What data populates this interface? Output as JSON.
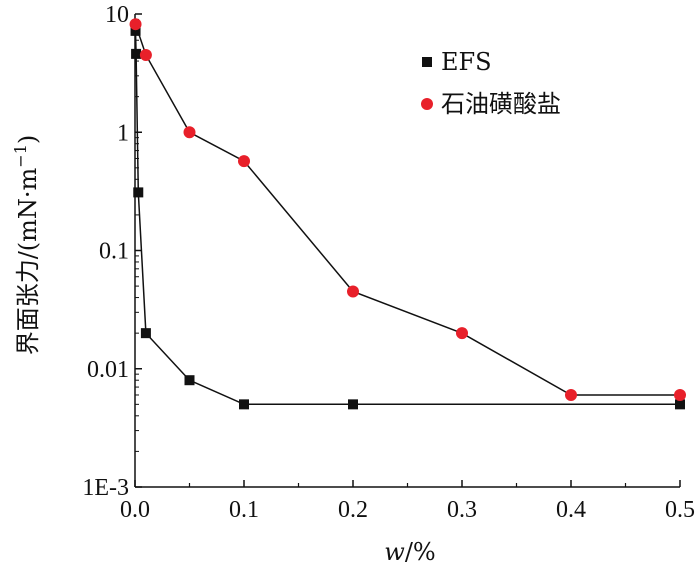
{
  "chart_data": {
    "type": "line",
    "xlabel": {
      "var": "w",
      "unit": "/%"
    },
    "ylabel": {
      "main": "界面张力/(mN·m",
      "sup": "−1",
      "close": ")"
    },
    "xlim": [
      0.0,
      0.5
    ],
    "ylim": [
      0.001,
      10
    ],
    "yscale": "log",
    "x_ticks": [
      0.0,
      0.1,
      0.2,
      0.3,
      0.4,
      0.5
    ],
    "x_tick_labels": [
      "0.0",
      "0.1",
      "0.2",
      "0.3",
      "0.4",
      "0.5"
    ],
    "y_ticks": [
      0.001,
      0.01,
      0.1,
      1,
      10
    ],
    "y_tick_labels": [
      "1E-3",
      "0.01",
      "0.1",
      "1",
      "10"
    ],
    "grid": false,
    "legend_position": "top-right",
    "series": [
      {
        "name": "EFS",
        "marker": "square",
        "color": "#111111",
        "x": [
          0.0005,
          0.001,
          0.003,
          0.01,
          0.05,
          0.1,
          0.2,
          0.5
        ],
        "y": [
          7.2,
          4.6,
          0.31,
          0.02,
          0.008,
          0.005,
          0.005,
          0.005
        ]
      },
      {
        "name": "石油磺酸盐",
        "marker": "circle",
        "color": "#e8202a",
        "x": [
          0.0005,
          0.01,
          0.05,
          0.1,
          0.2,
          0.3,
          0.4,
          0.5
        ],
        "y": [
          8.2,
          4.5,
          1.0,
          0.57,
          0.045,
          0.02,
          0.006,
          0.006
        ]
      }
    ]
  }
}
